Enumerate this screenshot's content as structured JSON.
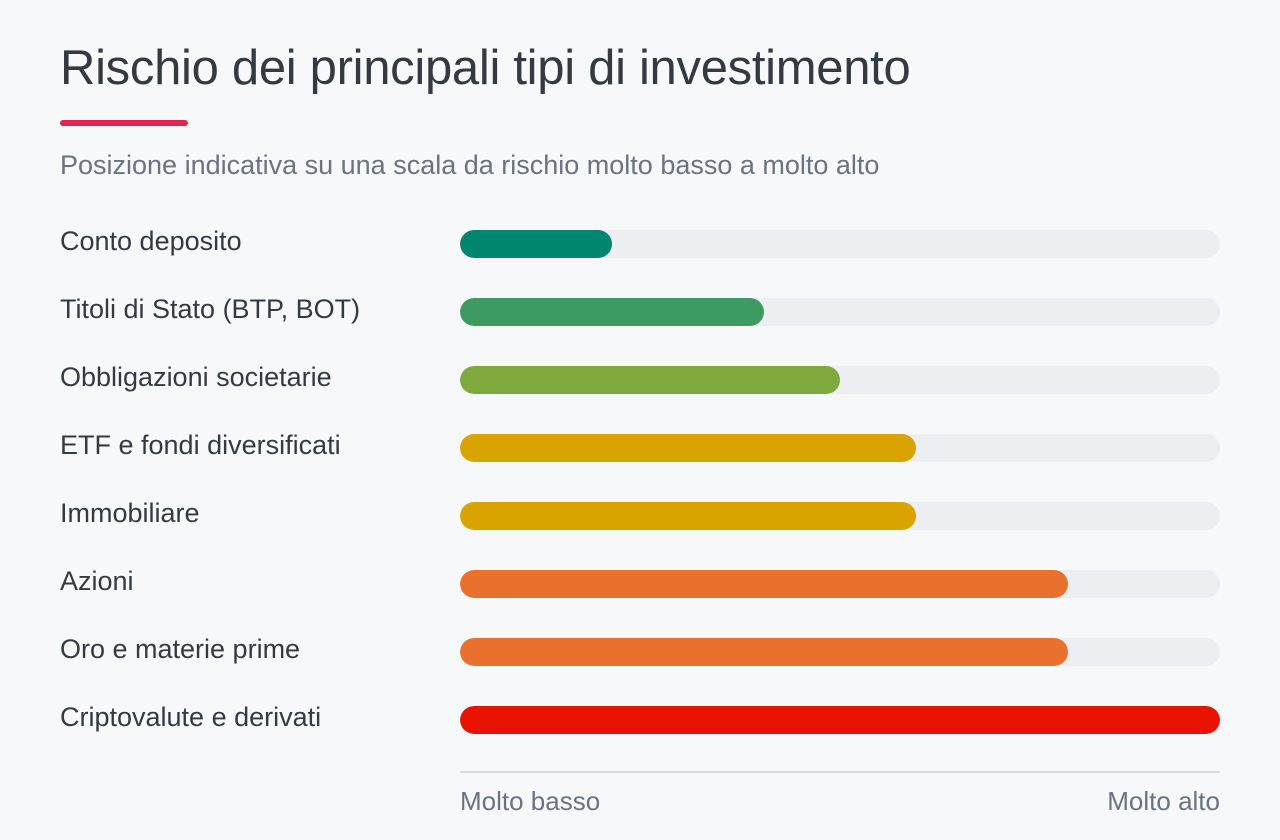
{
  "chart_data": {
    "type": "bar",
    "orientation": "horizontal",
    "title": "Rischio dei principali tipi di investimento",
    "subtitle": "Posizione indicativa su una scala da rischio molto basso a molto alto",
    "accent_color": "#e0264f",
    "track_color": "#eceef2",
    "scale": {
      "min_label": "Molto basso",
      "max_label": "Molto alto",
      "range": [
        0,
        1
      ]
    },
    "categories": [
      "Conto deposito",
      "Titoli di Stato (BTP, BOT)",
      "Obbligazioni societarie",
      "ETF e fondi diversificati",
      "Immobiliare",
      "Azioni",
      "Oro e materie prime",
      "Criptovalute e derivati"
    ],
    "values": [
      0.2,
      0.4,
      0.5,
      0.6,
      0.6,
      0.8,
      0.8,
      1.0
    ],
    "colors": [
      "#00856f",
      "#3d9b62",
      "#7da93d",
      "#d9a300",
      "#d9a300",
      "#e9702d",
      "#e9702d",
      "#e81300"
    ]
  }
}
